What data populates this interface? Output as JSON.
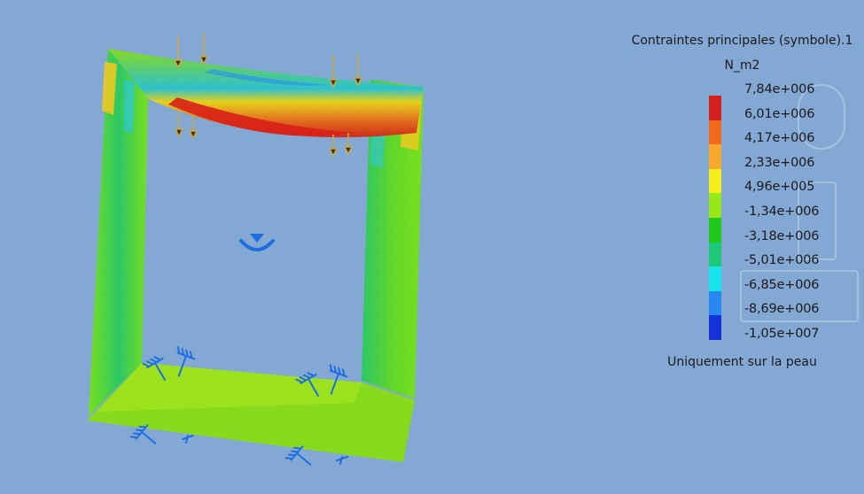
{
  "legend": {
    "title": "Contraintes principales (symbole).1",
    "unit": "N_m2",
    "footer": "Uniquement sur la peau",
    "values": [
      "7,84e+006",
      "6,01e+006",
      "4,17e+006",
      "2,33e+006",
      "4,96e+005",
      "-1,34e+006",
      "-3,18e+006",
      "-5,01e+006",
      "-6,85e+006",
      "-8,69e+006",
      "-1,05e+007"
    ],
    "colors": [
      "#d42020",
      "#f06a1c",
      "#f8a62c",
      "#f4ee1a",
      "#96e818",
      "#22c81e",
      "#1ec878",
      "#18e4ec",
      "#2888f0",
      "#1432d8"
    ]
  },
  "viewport": {
    "background": "#84a8d4",
    "model": "stress-deformed-frame",
    "load_arrow_color": "#c8a84a",
    "restraint_color": "#1e6ee0"
  }
}
